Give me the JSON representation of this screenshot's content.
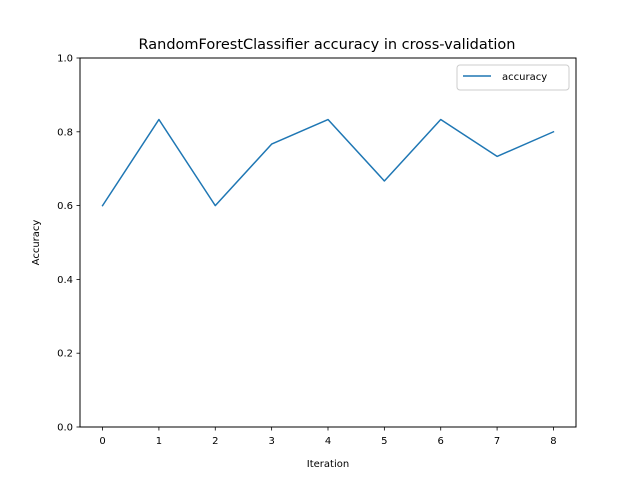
{
  "chart_data": {
    "type": "line",
    "title": "RandomForestClassifier accuracy in cross-validation",
    "xlabel": "Iteration",
    "ylabel": "Accuracy",
    "x": [
      0,
      1,
      2,
      3,
      4,
      5,
      6,
      7,
      8
    ],
    "series": [
      {
        "name": "accuracy",
        "color": "#1f77b4",
        "values": [
          0.6,
          0.8333,
          0.6,
          0.7667,
          0.8333,
          0.6667,
          0.8333,
          0.7333,
          0.8
        ]
      }
    ],
    "xlim": [
      -0.4,
      8.4
    ],
    "ylim": [
      0.0,
      1.0
    ],
    "xticks": [
      0,
      1,
      2,
      3,
      4,
      5,
      6,
      7,
      8
    ],
    "xtick_labels": [
      "0",
      "1",
      "2",
      "3",
      "4",
      "5",
      "6",
      "7",
      "8"
    ],
    "yticks": [
      0.0,
      0.2,
      0.4,
      0.6,
      0.8,
      1.0
    ],
    "ytick_labels": [
      "0.0",
      "0.2",
      "0.4",
      "0.6",
      "0.8",
      "1.0"
    ],
    "grid": false,
    "legend_position": "top-right"
  }
}
